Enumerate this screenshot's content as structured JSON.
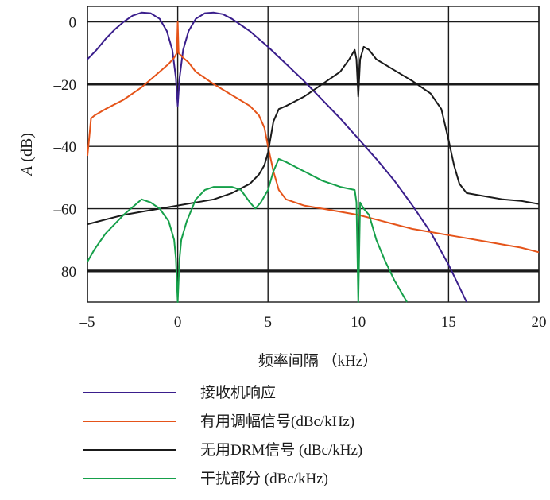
{
  "chart_data": {
    "type": "line",
    "title": "",
    "xlabel": "频率间隔 （kHz）",
    "ylabel_italic": "A",
    "ylabel_rest": " (dB)",
    "xlim": [
      -5,
      20
    ],
    "ylim": [
      -90,
      5
    ],
    "x_ticks": [
      {
        "value": -5,
        "label": "–5"
      },
      {
        "value": 0,
        "label": "0"
      },
      {
        "value": 5,
        "label": "5"
      },
      {
        "value": 10,
        "label": "10"
      },
      {
        "value": 15,
        "label": "15"
      },
      {
        "value": 20,
        "label": "20"
      }
    ],
    "y_ticks": [
      {
        "value": 0,
        "label": "0"
      },
      {
        "value": -20,
        "label": "–20"
      },
      {
        "value": -40,
        "label": "–40"
      },
      {
        "value": -60,
        "label": "–60"
      },
      {
        "value": -80,
        "label": "–80"
      }
    ],
    "grid": true,
    "legend_position": "bottom",
    "series": [
      {
        "name": "接收机响应",
        "color": "#3a1e8c",
        "points": [
          [
            -5,
            -12
          ],
          [
            -4.5,
            -9
          ],
          [
            -4,
            -5.5
          ],
          [
            -3.5,
            -2.5
          ],
          [
            -3,
            0
          ],
          [
            -2.5,
            2
          ],
          [
            -2,
            3
          ],
          [
            -1.5,
            2.8
          ],
          [
            -1,
            1
          ],
          [
            -0.6,
            -3
          ],
          [
            -0.3,
            -9
          ],
          [
            -0.1,
            -18
          ],
          [
            0,
            -27
          ],
          [
            0.1,
            -18
          ],
          [
            0.3,
            -9
          ],
          [
            0.6,
            -3
          ],
          [
            1,
            1
          ],
          [
            1.5,
            2.8
          ],
          [
            2,
            3
          ],
          [
            2.5,
            2.5
          ],
          [
            3,
            1
          ],
          [
            3.5,
            -1
          ],
          [
            4,
            -3
          ],
          [
            4.5,
            -5.5
          ],
          [
            5,
            -8
          ],
          [
            6,
            -13.5
          ],
          [
            7,
            -19
          ],
          [
            8,
            -25
          ],
          [
            9,
            -31
          ],
          [
            10,
            -37.5
          ],
          [
            11,
            -44
          ],
          [
            12,
            -51
          ],
          [
            13,
            -59
          ],
          [
            14,
            -67.5
          ],
          [
            15,
            -78
          ],
          [
            15.5,
            -84
          ],
          [
            16,
            -90
          ]
        ]
      },
      {
        "name": "有用调幅信号(dBc/kHz)",
        "color": "#e5541a",
        "points": [
          [
            -5,
            -43
          ],
          [
            -4.9,
            -37
          ],
          [
            -4.8,
            -31
          ],
          [
            -4.6,
            -30
          ],
          [
            -4,
            -28
          ],
          [
            -3,
            -25
          ],
          [
            -2,
            -21
          ],
          [
            -1,
            -16
          ],
          [
            -0.5,
            -13.5
          ],
          [
            -0.2,
            -11.5
          ],
          [
            -0.05,
            -10
          ],
          [
            0,
            0
          ],
          [
            0.05,
            -10
          ],
          [
            0.3,
            -11.5
          ],
          [
            0.6,
            -13
          ],
          [
            1,
            -16
          ],
          [
            2,
            -20
          ],
          [
            3,
            -23.5
          ],
          [
            4,
            -27
          ],
          [
            4.5,
            -30
          ],
          [
            4.8,
            -34
          ],
          [
            5,
            -40
          ],
          [
            5.3,
            -48
          ],
          [
            5.6,
            -54
          ],
          [
            6,
            -57
          ],
          [
            7,
            -59
          ],
          [
            8,
            -60
          ],
          [
            9,
            -61
          ],
          [
            10,
            -62
          ],
          [
            11,
            -63.5
          ],
          [
            12,
            -65
          ],
          [
            13,
            -66.5
          ],
          [
            14,
            -67.5
          ],
          [
            15,
            -68.5
          ],
          [
            16,
            -69.5
          ],
          [
            17,
            -70.5
          ],
          [
            18,
            -71.5
          ],
          [
            19,
            -72.5
          ],
          [
            20,
            -74
          ]
        ]
      },
      {
        "name": "无用DRM信号 (dBc/kHz)",
        "color": "#1a1a1a",
        "points": [
          [
            -5,
            -65
          ],
          [
            -4,
            -63.5
          ],
          [
            -3,
            -62
          ],
          [
            -2,
            -61
          ],
          [
            -1,
            -60
          ],
          [
            0,
            -59
          ],
          [
            1,
            -58
          ],
          [
            2,
            -57
          ],
          [
            3,
            -55
          ],
          [
            4,
            -52
          ],
          [
            4.5,
            -49
          ],
          [
            4.8,
            -46
          ],
          [
            5,
            -42
          ],
          [
            5.3,
            -32
          ],
          [
            5.6,
            -28
          ],
          [
            6,
            -27
          ],
          [
            7,
            -24
          ],
          [
            8,
            -20
          ],
          [
            9,
            -16
          ],
          [
            9.5,
            -12
          ],
          [
            9.8,
            -9
          ],
          [
            9.9,
            -12
          ],
          [
            10,
            -24
          ],
          [
            10.1,
            -12
          ],
          [
            10.3,
            -8
          ],
          [
            10.6,
            -9
          ],
          [
            11,
            -12
          ],
          [
            12,
            -15.5
          ],
          [
            13,
            -19
          ],
          [
            14,
            -23
          ],
          [
            14.6,
            -28
          ],
          [
            14.8,
            -33
          ],
          [
            15,
            -38
          ],
          [
            15.3,
            -46
          ],
          [
            15.6,
            -52
          ],
          [
            16,
            -55
          ],
          [
            17,
            -56
          ],
          [
            18,
            -57
          ],
          [
            19,
            -57.5
          ],
          [
            20,
            -58.5
          ]
        ]
      },
      {
        "name": "干扰部分 (dBc/kHz)",
        "color": "#16a04a",
        "points": [
          [
            -5,
            -77
          ],
          [
            -4.6,
            -73
          ],
          [
            -4,
            -68
          ],
          [
            -3,
            -62
          ],
          [
            -2,
            -57
          ],
          [
            -1.5,
            -58
          ],
          [
            -1,
            -60
          ],
          [
            -0.5,
            -64
          ],
          [
            -0.2,
            -70
          ],
          [
            -0.1,
            -76
          ],
          [
            0,
            -90
          ],
          [
            0.1,
            -76
          ],
          [
            0.2,
            -70
          ],
          [
            0.5,
            -64
          ],
          [
            1,
            -57
          ],
          [
            1.5,
            -54
          ],
          [
            2,
            -53
          ],
          [
            3,
            -53
          ],
          [
            3.5,
            -54
          ],
          [
            4,
            -58
          ],
          [
            4.3,
            -60
          ],
          [
            4.6,
            -58
          ],
          [
            5,
            -54
          ],
          [
            5.3,
            -48
          ],
          [
            5.6,
            -44
          ],
          [
            6,
            -45
          ],
          [
            7,
            -48
          ],
          [
            8,
            -51
          ],
          [
            9,
            -53
          ],
          [
            9.8,
            -54
          ],
          [
            9.9,
            -58
          ],
          [
            10,
            -90
          ],
          [
            10.1,
            -58
          ],
          [
            10.3,
            -60
          ],
          [
            10.6,
            -62
          ],
          [
            11,
            -70
          ],
          [
            11.5,
            -77
          ],
          [
            12,
            -83
          ],
          [
            12.5,
            -88
          ],
          [
            12.7,
            -90
          ]
        ]
      }
    ]
  }
}
